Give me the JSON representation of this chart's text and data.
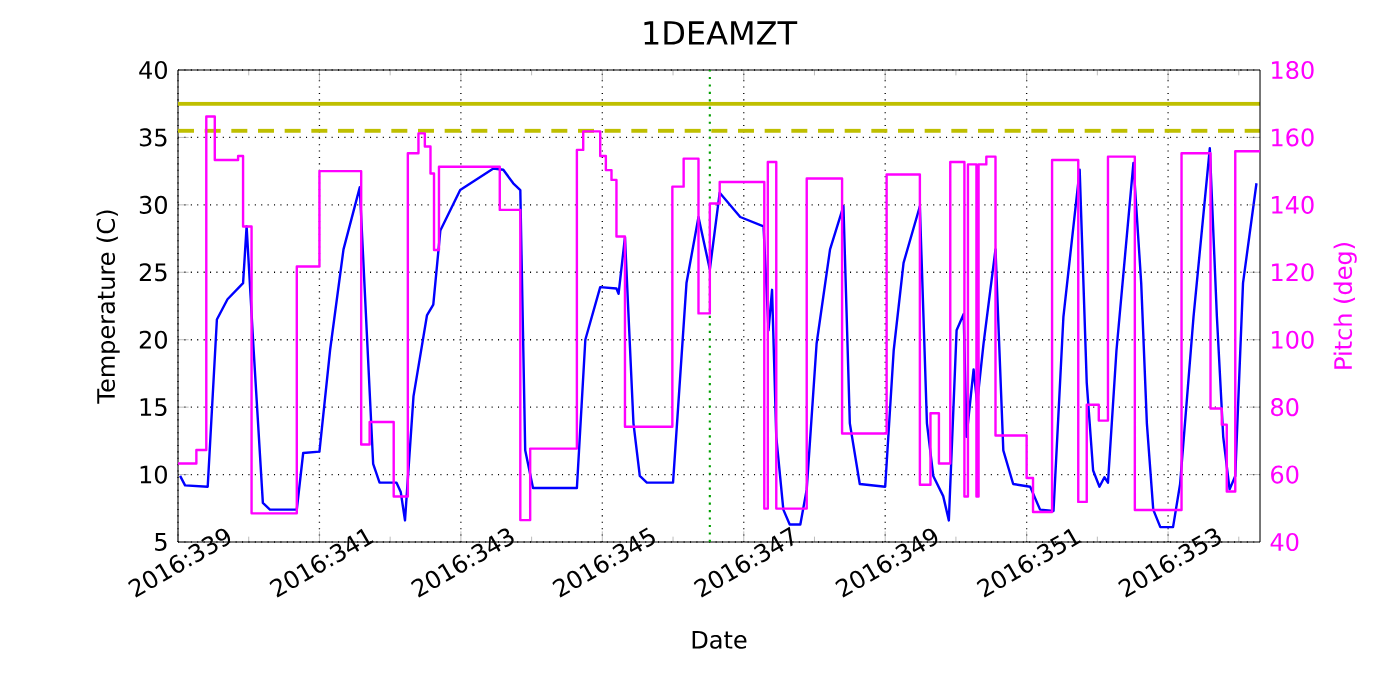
{
  "chart_data": {
    "type": "line",
    "title": "1DEAMZT",
    "xlabel": "Date",
    "ylabel": "Temperature (C)",
    "y2label": "Pitch (deg)",
    "xlim": [
      "2016-12-04",
      "2016-12-19T07:12"
    ],
    "ylim": [
      5,
      40
    ],
    "y2lim": [
      40,
      180
    ],
    "xticks": [
      {
        "value": "2016-12-04",
        "label": "2016:339"
      },
      {
        "value": "2016-12-05",
        "label": null
      },
      {
        "value": "2016-12-06",
        "label": "2016:341"
      },
      {
        "value": "2016-12-07",
        "label": null
      },
      {
        "value": "2016-12-08",
        "label": "2016:343"
      },
      {
        "value": "2016-12-09",
        "label": null
      },
      {
        "value": "2016-12-10",
        "label": "2016:345"
      },
      {
        "value": "2016-12-11",
        "label": null
      },
      {
        "value": "2016-12-12",
        "label": "2016:347"
      },
      {
        "value": "2016-12-13",
        "label": null
      },
      {
        "value": "2016-12-14",
        "label": "2016:349"
      },
      {
        "value": "2016-12-15",
        "label": null
      },
      {
        "value": "2016-12-16",
        "label": "2016:351"
      },
      {
        "value": "2016-12-17",
        "label": null
      },
      {
        "value": "2016-12-18",
        "label": "2016:353"
      },
      {
        "value": "2016-12-19",
        "label": null
      }
    ],
    "yticks": [
      5,
      10,
      15,
      20,
      25,
      30,
      35,
      40
    ],
    "y2ticks": [
      40,
      60,
      80,
      100,
      120,
      140,
      160,
      180
    ],
    "grid": true,
    "series": [
      {
        "type": "line",
        "color": "#0000ff",
        "x": [
          "2016-12-04T00:43",
          "2016-12-04T02:24",
          "2016-12-04T10:05",
          "2016-12-04T13:12",
          "2016-12-04T16:48",
          "2016-12-04T22:05",
          "2016-12-04T23:17",
          "2016-12-05T01:41",
          "2016-12-05T04:48",
          "2016-12-05T07:12",
          "2016-12-05T16:19",
          "2016-12-05T18:29",
          "2016-12-06T00:00",
          "2016-12-06T03:36",
          "2016-12-06T08:10",
          "2016-12-06T13:41",
          "2016-12-06T18:14",
          "2016-12-06T20:24",
          "2016-12-07T02:10",
          "2016-12-07T03:36",
          "2016-12-07T05:02",
          "2016-12-07T07:55",
          "2016-12-07T12:29",
          "2016-12-07T14:38",
          "2016-12-07T17:02",
          "2016-12-07T23:46",
          "2016-12-08T11:02",
          "2016-12-08T14:24",
          "2016-12-08T17:46",
          "2016-12-08T20:10",
          "2016-12-08T21:50",
          "2016-12-09T00:29",
          "2016-12-09T15:22",
          "2016-12-09T18:14",
          "2016-12-09T23:17",
          "2016-12-10T04:48",
          "2016-12-10T05:31",
          "2016-12-10T07:41",
          "2016-12-10T10:34",
          "2016-12-10T12:43",
          "2016-12-10T15:07",
          "2016-12-11T00:00",
          "2016-12-11T04:34",
          "2016-12-11T08:38",
          "2016-12-11T12:29",
          "2016-12-11T15:50",
          "2016-12-11T22:48",
          "2016-12-12T06:43",
          "2016-12-12T08:24",
          "2016-12-12T09:36",
          "2016-12-12T11:02",
          "2016-12-12T13:26",
          "2016-12-12T15:36",
          "2016-12-12T19:12",
          "2016-12-12T21:22",
          "2016-12-13T00:43",
          "2016-12-13T05:17",
          "2016-12-13T09:50",
          "2016-12-13T12:00",
          "2016-12-13T15:22",
          "2016-12-14T00:00",
          "2016-12-14T02:53",
          "2016-12-14T06:14",
          "2016-12-14T11:46",
          "2016-12-14T14:10",
          "2016-12-14T16:19",
          "2016-12-14T19:41",
          "2016-12-14T21:36",
          "2016-12-15T00:14",
          "2016-12-15T02:38",
          "2016-12-15T03:36",
          "2016-12-15T06:00",
          "2016-12-15T07:12",
          "2016-12-15T09:22",
          "2016-12-15T13:26",
          "2016-12-15T16:05",
          "2016-12-15T19:26",
          "2016-12-16T01:12",
          "2016-12-16T04:34",
          "2016-12-16T09:07",
          "2016-12-16T12:29",
          "2016-12-16T18:00",
          "2016-12-16T20:24",
          "2016-12-16T22:34",
          "2016-12-17T00:43",
          "2016-12-17T02:24",
          "2016-12-17T03:36",
          "2016-12-17T06:29",
          "2016-12-17T12:14",
          "2016-12-17T14:53",
          "2016-12-17T16:48",
          "2016-12-17T18:58",
          "2016-12-17T21:22",
          "2016-12-18T01:41",
          "2016-12-18T04:05",
          "2016-12-18T08:38",
          "2016-12-18T14:10",
          "2016-12-18T16:34",
          "2016-12-18T18:43",
          "2016-12-18T20:53",
          "2016-12-18T22:48",
          "2016-12-19T01:26",
          "2016-12-19T06:00"
        ],
        "values": [
          9.9,
          9.2,
          9.1,
          21.5,
          23.0,
          24.2,
          28.4,
          19.2,
          7.9,
          7.4,
          7.4,
          11.6,
          11.7,
          19.2,
          26.7,
          31.3,
          10.8,
          9.4,
          9.4,
          8.7,
          6.6,
          15.8,
          21.8,
          22.6,
          28.1,
          31.1,
          32.7,
          32.6,
          31.6,
          31.1,
          11.8,
          9.0,
          9.0,
          20.0,
          23.9,
          23.8,
          23.4,
          27.6,
          13.8,
          9.9,
          9.4,
          9.4,
          24.2,
          29.1,
          25.2,
          30.9,
          29.1,
          28.4,
          20.7,
          23.7,
          12.8,
          7.4,
          6.3,
          6.3,
          8.9,
          19.7,
          26.7,
          29.9,
          13.8,
          9.3,
          9.1,
          19.2,
          25.7,
          29.9,
          13.8,
          9.9,
          8.4,
          6.6,
          20.7,
          21.9,
          12.8,
          17.8,
          15.3,
          19.7,
          26.7,
          11.8,
          9.3,
          9.1,
          7.4,
          7.3,
          21.7,
          32.6,
          16.8,
          10.3,
          9.1,
          9.8,
          9.4,
          19.2,
          33.1,
          24.2,
          13.8,
          7.4,
          6.1,
          6.1,
          9.3,
          21.7,
          34.2,
          21.7,
          12.8,
          8.9,
          9.9,
          24.2,
          31.6
        ]
      },
      {
        "type": "step",
        "axis": "y2",
        "color": "#ff00ff",
        "x": [
          "2016-12-04T00:00",
          "2016-12-04T06:14",
          "2016-12-04T09:36",
          "2016-12-04T12:29",
          "2016-12-04T20:24",
          "2016-12-04T22:05",
          "2016-12-05T00:58",
          "2016-12-05T16:19",
          "2016-12-06T00:00",
          "2016-12-06T14:10",
          "2016-12-06T17:02",
          "2016-12-07T01:12",
          "2016-12-07T06:00",
          "2016-12-07T09:36",
          "2016-12-07T11:46",
          "2016-12-07T13:41",
          "2016-12-07T14:53",
          "2016-12-07T16:34",
          "2016-12-08T13:12",
          "2016-12-08T20:10",
          "2016-12-08T23:31",
          "2016-12-09T15:22",
          "2016-12-09T17:31",
          "2016-12-09T23:17",
          "2016-12-10T01:12",
          "2016-12-10T03:07",
          "2016-12-10T04:48",
          "2016-12-10T07:41",
          "2016-12-10T23:46",
          "2016-12-11T03:36",
          "2016-12-11T08:38",
          "2016-12-11T12:29",
          "2016-12-11T15:50",
          "2016-12-12T06:58",
          "2016-12-12T08:10",
          "2016-12-12T11:02",
          "2016-12-12T21:22",
          "2016-12-13T09:22",
          "2016-12-14T00:29",
          "2016-12-14T11:46",
          "2016-12-14T15:22",
          "2016-12-14T18:14",
          "2016-12-14T22:05",
          "2016-12-15T02:53",
          "2016-12-15T04:05",
          "2016-12-15T06:58",
          "2016-12-15T07:41",
          "2016-12-15T10:19",
          "2016-12-15T13:26",
          "2016-12-16T00:00",
          "2016-12-16T02:10",
          "2016-12-16T08:38",
          "2016-12-16T17:31",
          "2016-12-16T20:24",
          "2016-12-17T00:29",
          "2016-12-17T03:36",
          "2016-12-17T12:43",
          "2016-12-18T04:34",
          "2016-12-18T14:24",
          "2016-12-18T18:14",
          "2016-12-18T19:55",
          "2016-12-18T22:48",
          "2016-12-19T07:12"
        ],
        "values": [
          63.3,
          67.3,
          166.2,
          153.3,
          154.5,
          133.6,
          48.5,
          121.7,
          150,
          68.9,
          75.6,
          53.5,
          155.3,
          161.2,
          157.3,
          149.3,
          126.6,
          151.3,
          138.5,
          46.5,
          67.7,
          156.3,
          161.8,
          154.5,
          150.3,
          147.4,
          130.6,
          74.2,
          145.4,
          153.7,
          107.8,
          140.4,
          146.8,
          49.9,
          152.7,
          49.9,
          147.8,
          72.2,
          149,
          57,
          78.2,
          63.3,
          152.7,
          53.5,
          152,
          53.5,
          152,
          154.3,
          71.6,
          59,
          48.9,
          153.3,
          51.9,
          80.7,
          76,
          154.3,
          49.5,
          155.3,
          79.6,
          74.8,
          55,
          155.9,
          155.9
        ]
      }
    ],
    "ref_lines": [
      {
        "axis": "y",
        "value": 37.5,
        "color": "#bfbf00",
        "line_style": "solid"
      },
      {
        "axis": "y",
        "value": 35.5,
        "color": "#bfbf00",
        "line_style": "dashed"
      },
      {
        "axis": "x",
        "value": "2016-12-11T12:29",
        "color": "#00a000",
        "line_style": "dotted"
      }
    ]
  }
}
